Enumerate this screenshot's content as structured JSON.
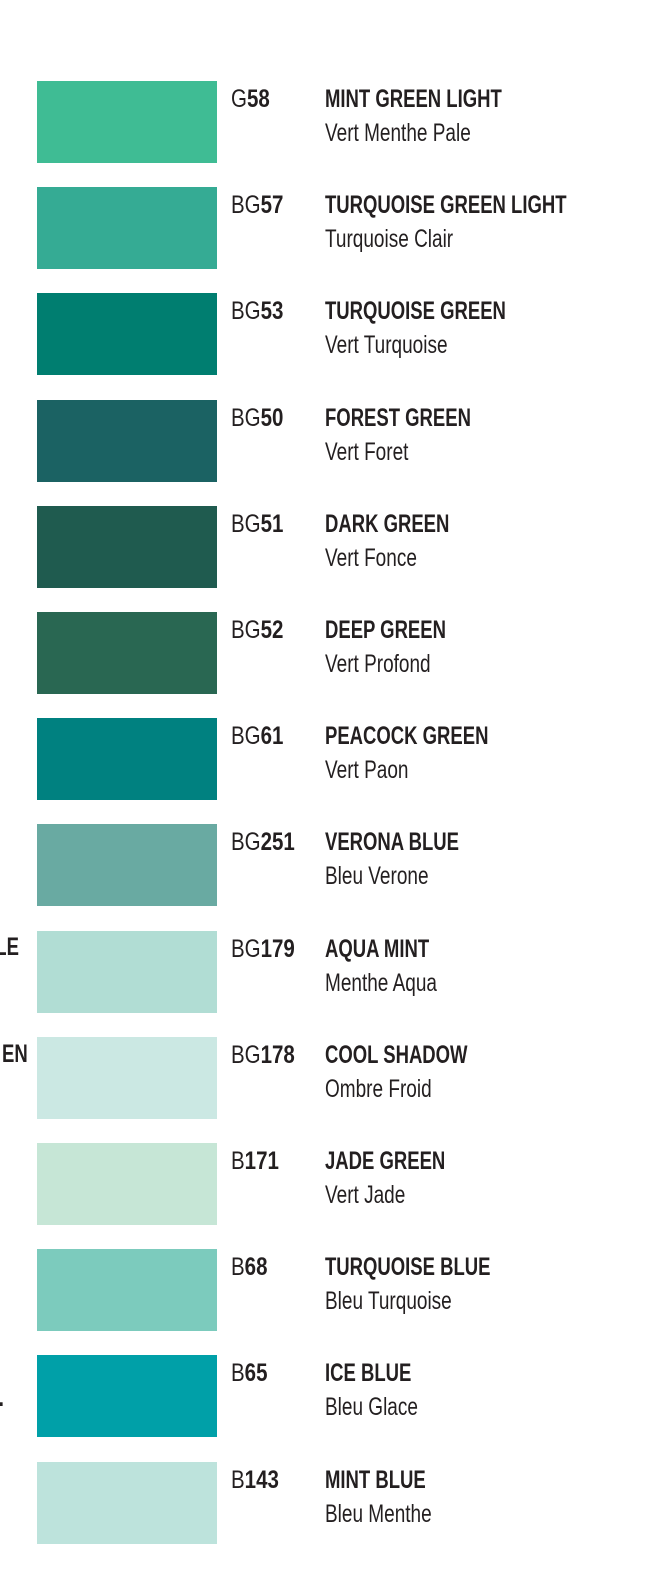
{
  "swatches": [
    {
      "prefix": "G",
      "number": "58",
      "name": "MINT GREEN LIGHT",
      "french": "Vert Menthe Pale",
      "color": "#3fbc94"
    },
    {
      "prefix": "BG",
      "number": "57",
      "name": "TURQUOISE GREEN LIGHT",
      "french": "Turquoise Clair",
      "color": "#35ab94"
    },
    {
      "prefix": "BG",
      "number": "53",
      "name": "TURQUOISE GREEN",
      "french": "Vert Turquoise",
      "color": "#007e70"
    },
    {
      "prefix": "BG",
      "number": "50",
      "name": "FOREST GREEN",
      "french": "Vert Foret",
      "color": "#1b6263"
    },
    {
      "prefix": "BG",
      "number": "51",
      "name": "DARK GREEN",
      "french": "Vert Fonce",
      "color": "#1f5b4f"
    },
    {
      "prefix": "BG",
      "number": "52",
      "name": "DEEP GREEN",
      "french": "Vert Profond",
      "color": "#296752"
    },
    {
      "prefix": "BG",
      "number": "61",
      "name": "PEACOCK GREEN",
      "french": "Vert Paon",
      "color": "#008180"
    },
    {
      "prefix": "BG",
      "number": "251",
      "name": "VERONA BLUE",
      "french": "Bleu Verone",
      "color": "#69aaa2"
    },
    {
      "prefix": "BG",
      "number": "179",
      "name": "AQUA MINT",
      "french": "Menthe Aqua",
      "color": "#b1ddd4"
    },
    {
      "prefix": "BG",
      "number": "178",
      "name": "COOL SHADOW",
      "french": "Ombre Froid",
      "color": "#cbe8e3"
    },
    {
      "prefix": "B",
      "number": "171",
      "name": "JADE GREEN",
      "french": "Vert Jade",
      "color": "#c6e6d6"
    },
    {
      "prefix": "B",
      "number": "68",
      "name": "TURQUOISE BLUE",
      "french": "Bleu Turquoise",
      "color": "#7ccbbd"
    },
    {
      "prefix": "B",
      "number": "65",
      "name": "ICE BLUE",
      "french": "Bleu Glace",
      "color": "#00a0a8"
    },
    {
      "prefix": "B",
      "number": "143",
      "name": "MINT BLUE",
      "french": "Bleu Menthe",
      "color": "#bde3dc"
    }
  ],
  "cut_off_left": [
    "LE",
    "EN",
    "."
  ]
}
